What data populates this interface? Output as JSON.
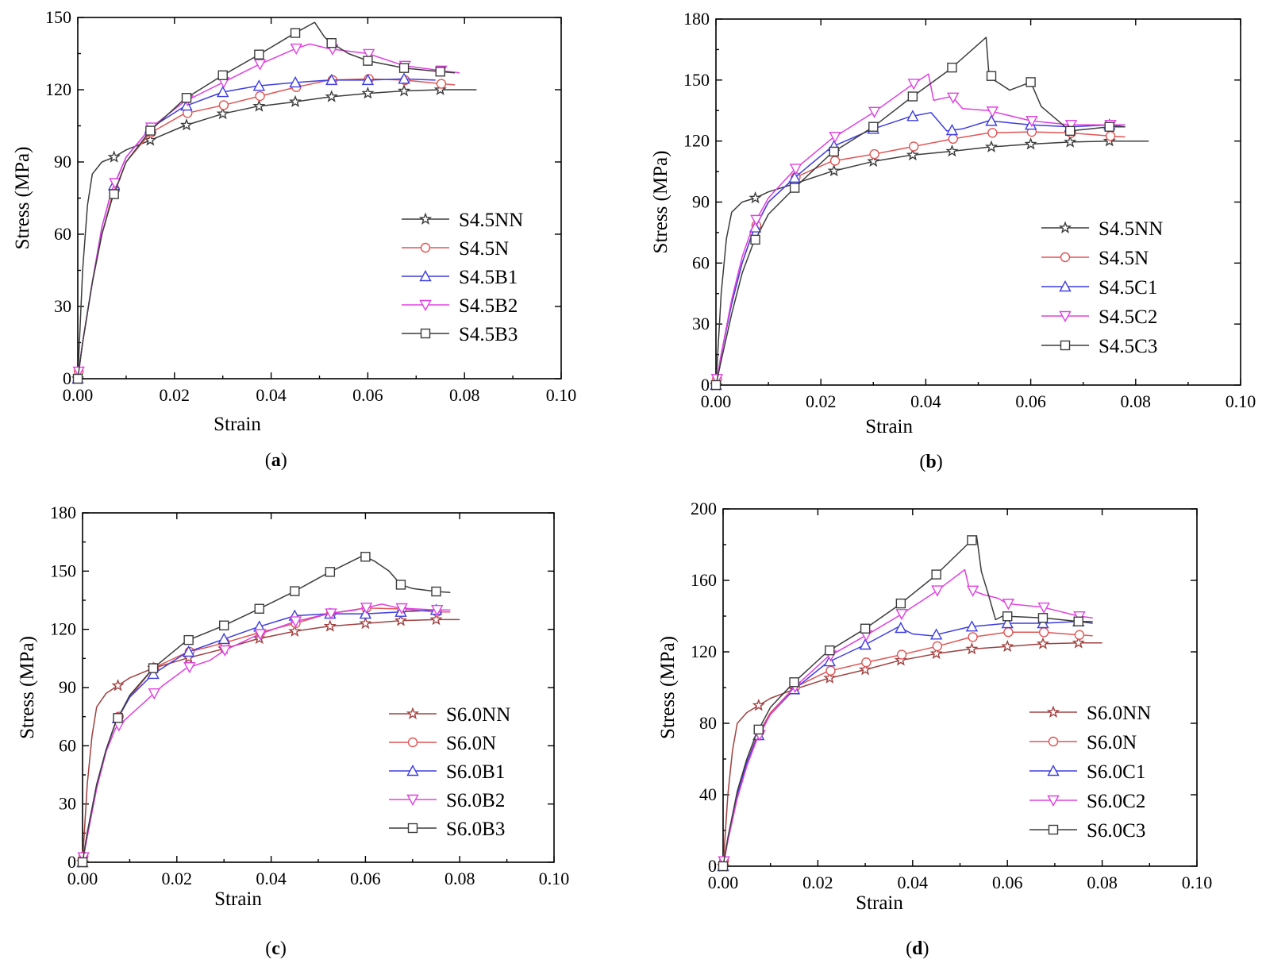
{
  "chart_data": [
    {
      "type": "line",
      "caption": "a",
      "xlabel": "Strain",
      "ylabel": "Stress (MPa)",
      "xlim": [
        0,
        0.1
      ],
      "ylim": [
        0,
        150
      ],
      "xticks": [
        "0.00",
        "0.02",
        "0.04",
        "0.06",
        "0.08",
        "0.10"
      ],
      "yticks": [
        "0",
        "30",
        "60",
        "90",
        "120",
        "150"
      ],
      "legend_position": "lower-right",
      "series": [
        {
          "name": "S4.5NN",
          "color": "#3c3c3c",
          "marker": "star",
          "x": [
            0,
            0.001,
            0.002,
            0.003,
            0.005,
            0.0075,
            0.01,
            0.015,
            0.022,
            0.03,
            0.037,
            0.045,
            0.052,
            0.06,
            0.0675,
            0.075,
            0.0825
          ],
          "y": [
            0,
            45,
            72,
            85,
            90,
            92,
            95,
            99,
            105,
            110,
            113,
            115,
            117,
            118.5,
            119.5,
            120,
            120
          ]
        },
        {
          "name": "S4.5N",
          "color": "#e05555",
          "marker": "circle",
          "x": [
            0,
            0.001,
            0.003,
            0.005,
            0.007,
            0.01,
            0.015,
            0.022,
            0.03,
            0.037,
            0.045,
            0.052,
            0.06,
            0.0675,
            0.075,
            0.078
          ],
          "y": [
            0,
            15,
            40,
            60,
            75,
            90,
            102,
            110,
            113.5,
            117,
            121,
            124,
            124.5,
            124,
            122.5,
            122
          ]
        },
        {
          "name": "S4.5B1",
          "color": "#3d3de0",
          "marker": "triangle-up",
          "x": [
            0,
            0.001,
            0.003,
            0.005,
            0.007,
            0.01,
            0.015,
            0.022,
            0.03,
            0.037,
            0.045,
            0.052,
            0.06,
            0.0675,
            0.074
          ],
          "y": [
            0,
            15,
            40,
            63,
            78,
            92,
            104,
            113,
            119,
            121.5,
            123,
            124,
            124,
            124.5,
            124
          ]
        },
        {
          "name": "S4.5B2",
          "color": "#e040e0",
          "marker": "triangle-down",
          "x": [
            0,
            0.001,
            0.003,
            0.005,
            0.007,
            0.01,
            0.015,
            0.022,
            0.03,
            0.037,
            0.045,
            0.048,
            0.052,
            0.06,
            0.0675,
            0.075,
            0.079
          ],
          "y": [
            0,
            15,
            40,
            63,
            78,
            92,
            104,
            115,
            123,
            130,
            137,
            139,
            137,
            135,
            130,
            128,
            127
          ]
        },
        {
          "name": "S4.5B3",
          "color": "#3c3c3c",
          "marker": "square",
          "x": [
            0,
            0.001,
            0.003,
            0.005,
            0.007,
            0.01,
            0.015,
            0.022,
            0.03,
            0.037,
            0.0445,
            0.049,
            0.051,
            0.052,
            0.056,
            0.06,
            0.0675,
            0.075,
            0.078
          ],
          "y": [
            0,
            15,
            40,
            60,
            74,
            90,
            103,
            116,
            126,
            134,
            143,
            148,
            142,
            140,
            135,
            132,
            129,
            127.5,
            127
          ]
        }
      ]
    },
    {
      "type": "line",
      "caption": "b",
      "xlabel": "Strain",
      "ylabel": "Stress (MPa)",
      "xlim": [
        0,
        0.1
      ],
      "ylim": [
        0,
        180
      ],
      "xticks": [
        "0.00",
        "0.02",
        "0.04",
        "0.06",
        "0.08",
        "0.10"
      ],
      "yticks": [
        "0",
        "30",
        "60",
        "90",
        "120",
        "150",
        "180"
      ],
      "legend_position": "lower-right",
      "series": [
        {
          "name": "S4.5NN",
          "color": "#3c3c3c",
          "marker": "star",
          "x": [
            0,
            0.001,
            0.002,
            0.003,
            0.005,
            0.0075,
            0.01,
            0.015,
            0.022,
            0.03,
            0.037,
            0.045,
            0.052,
            0.06,
            0.0675,
            0.075,
            0.0825
          ],
          "y": [
            0,
            45,
            72,
            85,
            90,
            92,
            95,
            99,
            105,
            110,
            113,
            115,
            117,
            118.5,
            119.5,
            120,
            120
          ]
        },
        {
          "name": "S4.5N",
          "color": "#e05555",
          "marker": "circle",
          "x": [
            0,
            0.001,
            0.003,
            0.005,
            0.007,
            0.01,
            0.015,
            0.022,
            0.03,
            0.037,
            0.045,
            0.052,
            0.06,
            0.0675,
            0.075,
            0.078
          ],
          "y": [
            0,
            15,
            40,
            60,
            75,
            90,
            102,
            110,
            113.5,
            117,
            121,
            124,
            124.5,
            124,
            122.5,
            122
          ]
        },
        {
          "name": "S4.5C1",
          "color": "#3d3de0",
          "marker": "triangle-up",
          "x": [
            0,
            0.001,
            0.003,
            0.005,
            0.007,
            0.01,
            0.015,
            0.022,
            0.03,
            0.037,
            0.041,
            0.044,
            0.047,
            0.052,
            0.06,
            0.0675,
            0.075,
            0.078
          ],
          "y": [
            0,
            15,
            40,
            60,
            75,
            90,
            102,
            117,
            126,
            132,
            134,
            125,
            126,
            130,
            128,
            127,
            128,
            127
          ]
        },
        {
          "name": "S4.5C2",
          "color": "#e040e0",
          "marker": "triangle-down",
          "x": [
            0,
            0.001,
            0.003,
            0.005,
            0.007,
            0.01,
            0.015,
            0.022,
            0.03,
            0.037,
            0.0405,
            0.0415,
            0.045,
            0.047,
            0.052,
            0.06,
            0.0675,
            0.075,
            0.078
          ],
          "y": [
            0,
            15,
            42,
            63,
            78,
            92,
            106,
            121,
            134,
            147,
            153,
            140,
            142,
            136,
            135,
            130,
            128,
            128,
            128
          ]
        },
        {
          "name": "S4.5C3",
          "color": "#3c3c3c",
          "marker": "square",
          "x": [
            0,
            0.001,
            0.003,
            0.005,
            0.007,
            0.01,
            0.015,
            0.022,
            0.03,
            0.037,
            0.0445,
            0.0515,
            0.052,
            0.053,
            0.056,
            0.06,
            0.062,
            0.0675,
            0.075,
            0.078
          ],
          "y": [
            0,
            12,
            35,
            55,
            69,
            84,
            97,
            114,
            127,
            141,
            155,
            171,
            154,
            150,
            145,
            149,
            137,
            125,
            127,
            127
          ]
        }
      ]
    },
    {
      "type": "line",
      "caption": "c",
      "xlabel": "Strain",
      "ylabel": "Stress (MPa)",
      "xlim": [
        0,
        0.1
      ],
      "ylim": [
        0,
        180
      ],
      "xticks": [
        "0.00",
        "0.02",
        "0.04",
        "0.06",
        "0.08",
        "0.10"
      ],
      "yticks": [
        "0",
        "30",
        "60",
        "90",
        "120",
        "150",
        "180"
      ],
      "legend_position": "lower-right",
      "series": [
        {
          "name": "S6.0NN",
          "color": "#a04040",
          "marker": "star",
          "x": [
            0,
            0.001,
            0.002,
            0.003,
            0.005,
            0.0075,
            0.01,
            0.015,
            0.022,
            0.03,
            0.037,
            0.045,
            0.052,
            0.06,
            0.0675,
            0.075,
            0.08
          ],
          "y": [
            0,
            40,
            65,
            80,
            87,
            91,
            95,
            100,
            105,
            110,
            115,
            119,
            121.5,
            123,
            124.5,
            125,
            125
          ]
        },
        {
          "name": "S6.0N",
          "color": "#e05555",
          "marker": "circle",
          "x": [
            0,
            0.001,
            0.003,
            0.005,
            0.007,
            0.01,
            0.015,
            0.022,
            0.03,
            0.037,
            0.045,
            0.052,
            0.06,
            0.0675,
            0.075,
            0.078
          ],
          "y": [
            0,
            15,
            40,
            58,
            72,
            85,
            100,
            108,
            113,
            118,
            123,
            128,
            131,
            130.5,
            129,
            129
          ]
        },
        {
          "name": "S6.0B1",
          "color": "#3d3de0",
          "marker": "triangle-up",
          "x": [
            0,
            0.001,
            0.003,
            0.005,
            0.007,
            0.01,
            0.015,
            0.022,
            0.03,
            0.037,
            0.045,
            0.052,
            0.06,
            0.0675,
            0.075,
            0.078
          ],
          "y": [
            0,
            15,
            40,
            58,
            72,
            85,
            97,
            108,
            115,
            121,
            127,
            128,
            128,
            129,
            130,
            130
          ]
        },
        {
          "name": "S6.0B2",
          "color": "#e040e0",
          "marker": "triangle-down",
          "x": [
            0,
            0.001,
            0.003,
            0.005,
            0.007,
            0.012,
            0.017,
            0.022,
            0.027,
            0.03,
            0.037,
            0.045,
            0.052,
            0.058,
            0.0635,
            0.067,
            0.075,
            0.078
          ],
          "y": [
            0,
            13,
            38,
            57,
            69,
            80,
            91,
            100,
            104,
            109,
            117,
            124,
            128,
            130,
            133,
            131,
            130,
            130
          ]
        },
        {
          "name": "S6.0B3",
          "color": "#3c3c3c",
          "marker": "square",
          "x": [
            0,
            0.001,
            0.003,
            0.005,
            0.007,
            0.01,
            0.015,
            0.022,
            0.03,
            0.037,
            0.0445,
            0.052,
            0.0595,
            0.062,
            0.065,
            0.0675,
            0.07,
            0.075,
            0.078
          ],
          "y": [
            0,
            15,
            40,
            58,
            72,
            86,
            100,
            114,
            122,
            130,
            139,
            149,
            158,
            155,
            150,
            143,
            141,
            139.5,
            139
          ]
        }
      ]
    },
    {
      "type": "line",
      "caption": "d",
      "xlabel": "Strain",
      "ylabel": "Stress (MPa)",
      "xlim": [
        0,
        0.1
      ],
      "ylim": [
        0,
        200
      ],
      "xticks": [
        "0.00",
        "0.02",
        "0.04",
        "0.06",
        "0.08",
        "0.10"
      ],
      "yticks": [
        "0",
        "40",
        "80",
        "120",
        "160",
        "200"
      ],
      "legend_position": "lower-right",
      "series": [
        {
          "name": "S6.0NN",
          "color": "#a04040",
          "marker": "star",
          "x": [
            0,
            0.001,
            0.002,
            0.003,
            0.005,
            0.0075,
            0.01,
            0.015,
            0.022,
            0.03,
            0.037,
            0.045,
            0.052,
            0.06,
            0.0675,
            0.075,
            0.08
          ],
          "y": [
            0,
            40,
            65,
            80,
            86,
            90,
            94,
            99,
            105,
            110,
            115,
            119,
            121.5,
            123,
            124.5,
            125,
            125
          ]
        },
        {
          "name": "S6.0N",
          "color": "#e05555",
          "marker": "circle",
          "x": [
            0,
            0.001,
            0.003,
            0.005,
            0.007,
            0.01,
            0.015,
            0.022,
            0.03,
            0.037,
            0.045,
            0.052,
            0.06,
            0.0675,
            0.075,
            0.078
          ],
          "y": [
            0,
            15,
            40,
            58,
            72,
            86,
            100,
            109,
            114,
            118,
            123,
            128,
            131,
            131,
            129.5,
            129
          ]
        },
        {
          "name": "S6.0C1",
          "color": "#3d3de0",
          "marker": "triangle-up",
          "x": [
            0,
            0.001,
            0.003,
            0.005,
            0.007,
            0.01,
            0.015,
            0.022,
            0.03,
            0.037,
            0.04,
            0.044,
            0.052,
            0.06,
            0.0675,
            0.075,
            0.078
          ],
          "y": [
            0,
            15,
            40,
            58,
            71,
            85,
            99,
            114,
            124,
            134,
            130,
            129,
            134,
            136,
            136,
            137,
            137
          ]
        },
        {
          "name": "S6.0C2",
          "color": "#e040e0",
          "marker": "triangle-down",
          "x": [
            0,
            0.001,
            0.003,
            0.005,
            0.007,
            0.01,
            0.015,
            0.022,
            0.03,
            0.037,
            0.0445,
            0.051,
            0.052,
            0.055,
            0.058,
            0.06,
            0.0675,
            0.075,
            0.078
          ],
          "y": [
            0,
            14,
            38,
            56,
            70,
            85,
            100,
            117,
            129,
            140,
            153,
            166,
            155,
            152,
            150,
            147,
            145,
            140,
            139
          ]
        },
        {
          "name": "S6.0C3",
          "color": "#3c3c3c",
          "marker": "square",
          "x": [
            0,
            0.001,
            0.003,
            0.005,
            0.007,
            0.01,
            0.015,
            0.022,
            0.03,
            0.037,
            0.0445,
            0.0515,
            0.0535,
            0.0545,
            0.056,
            0.0575,
            0.059,
            0.0675,
            0.075,
            0.078
          ],
          "y": [
            0,
            16,
            42,
            60,
            74,
            89,
            103,
            120,
            133,
            146,
            162,
            180,
            185,
            165,
            152,
            138,
            140,
            139,
            137,
            136
          ]
        }
      ]
    }
  ]
}
